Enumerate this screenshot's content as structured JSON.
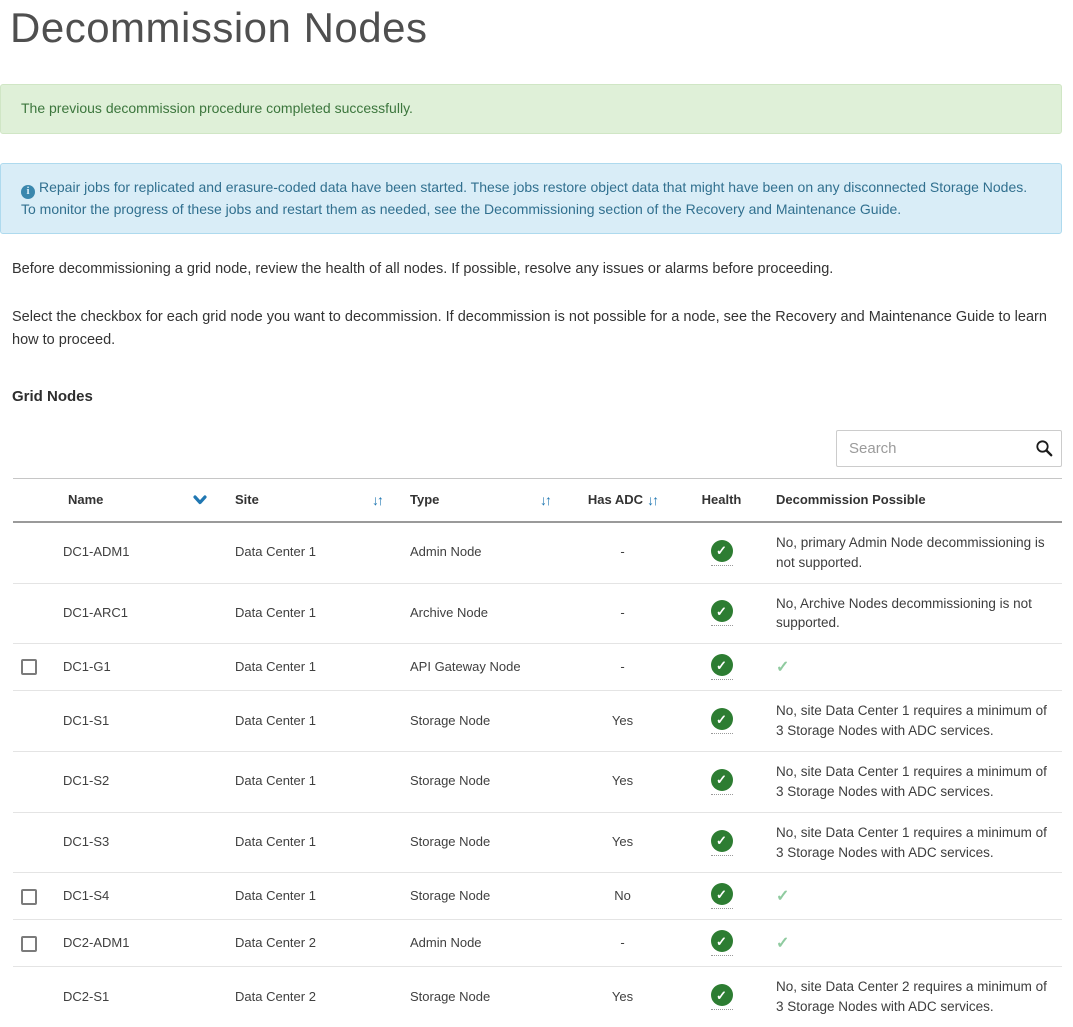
{
  "page": {
    "title": "Decommission Nodes"
  },
  "alerts": {
    "success": {
      "text": "The previous decommission procedure completed successfully."
    },
    "info": {
      "icon": "info-icon",
      "text": "Repair jobs for replicated and erasure-coded data have been started. These jobs restore object data that might have been on any disconnected Storage Nodes. To monitor the progress of these jobs and restart them as needed, see the Decommissioning section of the Recovery and Maintenance Guide."
    }
  },
  "paragraphs": [
    "Before decommissioning a grid node, review the health of all nodes. If possible, resolve any issues or alarms before proceeding.",
    "Select the checkbox for each grid node you want to decommission. If decommission is not possible for a node, see the Recovery and Maintenance Guide to learn how to proceed."
  ],
  "section": {
    "heading": "Grid Nodes"
  },
  "search": {
    "placeholder": "Search",
    "value": "",
    "icon": "search-icon"
  },
  "table": {
    "columns": [
      {
        "key": "name",
        "label": "Name",
        "sort": "desc"
      },
      {
        "key": "site",
        "label": "Site",
        "sort": "both"
      },
      {
        "key": "type",
        "label": "Type",
        "sort": "both"
      },
      {
        "key": "has_adc",
        "label": "Has ADC",
        "sort": "both"
      },
      {
        "key": "health",
        "label": "Health",
        "sort": "none"
      },
      {
        "key": "possible",
        "label": "Decommission Possible",
        "sort": "none"
      }
    ],
    "rows": [
      {
        "selectable": false,
        "checked": false,
        "name": "DC1-ADM1",
        "site": "Data Center 1",
        "type": "Admin Node",
        "has_adc": "-",
        "health": "healthy",
        "possible_check": false,
        "possible_text": "No, primary Admin Node decommissioning is not supported."
      },
      {
        "selectable": false,
        "checked": false,
        "name": "DC1-ARC1",
        "site": "Data Center 1",
        "type": "Archive Node",
        "has_adc": "-",
        "health": "healthy",
        "possible_check": false,
        "possible_text": "No, Archive Nodes decommissioning is not supported."
      },
      {
        "selectable": true,
        "checked": false,
        "name": "DC1-G1",
        "site": "Data Center 1",
        "type": "API Gateway Node",
        "has_adc": "-",
        "health": "healthy",
        "possible_check": true,
        "possible_text": ""
      },
      {
        "selectable": false,
        "checked": false,
        "name": "DC1-S1",
        "site": "Data Center 1",
        "type": "Storage Node",
        "has_adc": "Yes",
        "health": "healthy",
        "possible_check": false,
        "possible_text": "No, site Data Center 1 requires a minimum of 3 Storage Nodes with ADC services."
      },
      {
        "selectable": false,
        "checked": false,
        "name": "DC1-S2",
        "site": "Data Center 1",
        "type": "Storage Node",
        "has_adc": "Yes",
        "health": "healthy",
        "possible_check": false,
        "possible_text": "No, site Data Center 1 requires a minimum of 3 Storage Nodes with ADC services."
      },
      {
        "selectable": false,
        "checked": false,
        "name": "DC1-S3",
        "site": "Data Center 1",
        "type": "Storage Node",
        "has_adc": "Yes",
        "health": "healthy",
        "possible_check": false,
        "possible_text": "No, site Data Center 1 requires a minimum of 3 Storage Nodes with ADC services."
      },
      {
        "selectable": true,
        "checked": false,
        "name": "DC1-S4",
        "site": "Data Center 1",
        "type": "Storage Node",
        "has_adc": "No",
        "health": "healthy",
        "possible_check": true,
        "possible_text": ""
      },
      {
        "selectable": true,
        "checked": false,
        "name": "DC2-ADM1",
        "site": "Data Center 2",
        "type": "Admin Node",
        "has_adc": "-",
        "health": "healthy",
        "possible_check": true,
        "possible_text": ""
      },
      {
        "selectable": false,
        "checked": false,
        "name": "DC2-S1",
        "site": "Data Center 2",
        "type": "Storage Node",
        "has_adc": "Yes",
        "health": "healthy",
        "possible_check": false,
        "possible_text": "No, site Data Center 2 requires a minimum of 3 Storage Nodes with ADC services."
      }
    ]
  },
  "colors": {
    "success_bg": "#dff0d8",
    "success_text": "#3c763d",
    "info_bg": "#d9edf7",
    "info_text": "#31708f",
    "sort_blue": "#2077b2",
    "health_green": "#2d7d32",
    "possible_check_green": "#90cba0"
  }
}
